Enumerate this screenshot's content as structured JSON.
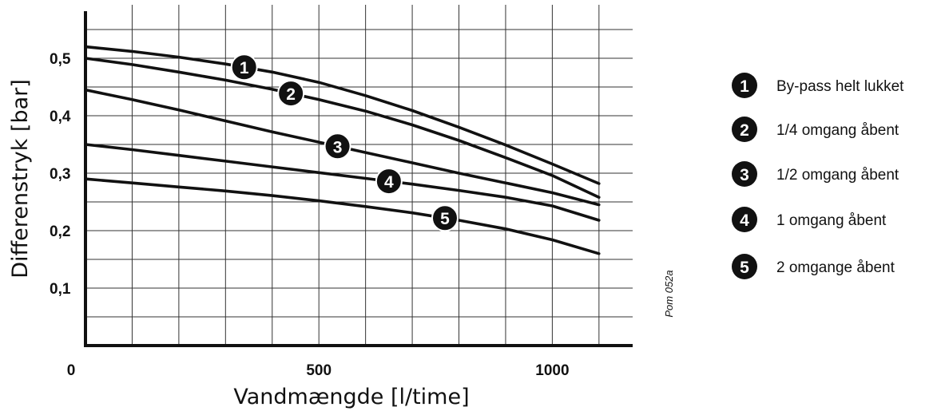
{
  "chart_data": {
    "type": "line",
    "xlabel": "Vandmængde [l/time]",
    "ylabel": "Differenstryk [bar]",
    "xlim": [
      0,
      1180
    ],
    "ylim": [
      0,
      0.58
    ],
    "x_ticks": [
      0,
      500,
      1000
    ],
    "x_tick_labels": [
      "0",
      "500",
      "1000"
    ],
    "y_ticks": [
      0.1,
      0.2,
      0.3,
      0.4,
      0.5
    ],
    "y_tick_labels": [
      "0,1",
      "0,2",
      "0,3",
      "0,4",
      "0,5"
    ],
    "grid": true,
    "legend_position": "right",
    "reference_code": "Pom 052a",
    "series": [
      {
        "marker": "1",
        "label": "By-pass helt lukket",
        "x": [
          0,
          100,
          200,
          300,
          400,
          500,
          600,
          700,
          800,
          900,
          1000,
          1100
        ],
        "y": [
          0.52,
          0.512,
          0.502,
          0.49,
          0.476,
          0.458,
          0.435,
          0.409,
          0.38,
          0.349,
          0.316,
          0.282
        ]
      },
      {
        "marker": "2",
        "label": "1/4 omgang åbent",
        "x": [
          0,
          100,
          200,
          300,
          400,
          500,
          600,
          700,
          800,
          900,
          1000,
          1100
        ],
        "y": [
          0.5,
          0.489,
          0.476,
          0.462,
          0.446,
          0.428,
          0.408,
          0.384,
          0.357,
          0.327,
          0.296,
          0.258
        ]
      },
      {
        "marker": "3",
        "label": "1/2 omgang åbent",
        "x": [
          0,
          100,
          200,
          300,
          400,
          500,
          600,
          700,
          800,
          900,
          1000,
          1100
        ],
        "y": [
          0.445,
          0.428,
          0.41,
          0.391,
          0.372,
          0.354,
          0.336,
          0.318,
          0.3,
          0.283,
          0.266,
          0.245
        ]
      },
      {
        "marker": "4",
        "label": "1 omgang åbent",
        "x": [
          0,
          100,
          200,
          300,
          400,
          500,
          600,
          700,
          800,
          900,
          1000,
          1100
        ],
        "y": [
          0.35,
          0.341,
          0.331,
          0.321,
          0.311,
          0.301,
          0.291,
          0.281,
          0.27,
          0.258,
          0.243,
          0.218
        ]
      },
      {
        "marker": "5",
        "label": "2 omgange åbent",
        "x": [
          0,
          100,
          200,
          300,
          400,
          500,
          600,
          700,
          800,
          900,
          1000,
          1100
        ],
        "y": [
          0.29,
          0.283,
          0.276,
          0.269,
          0.261,
          0.252,
          0.242,
          0.231,
          0.218,
          0.203,
          0.184,
          0.16
        ]
      }
    ]
  }
}
